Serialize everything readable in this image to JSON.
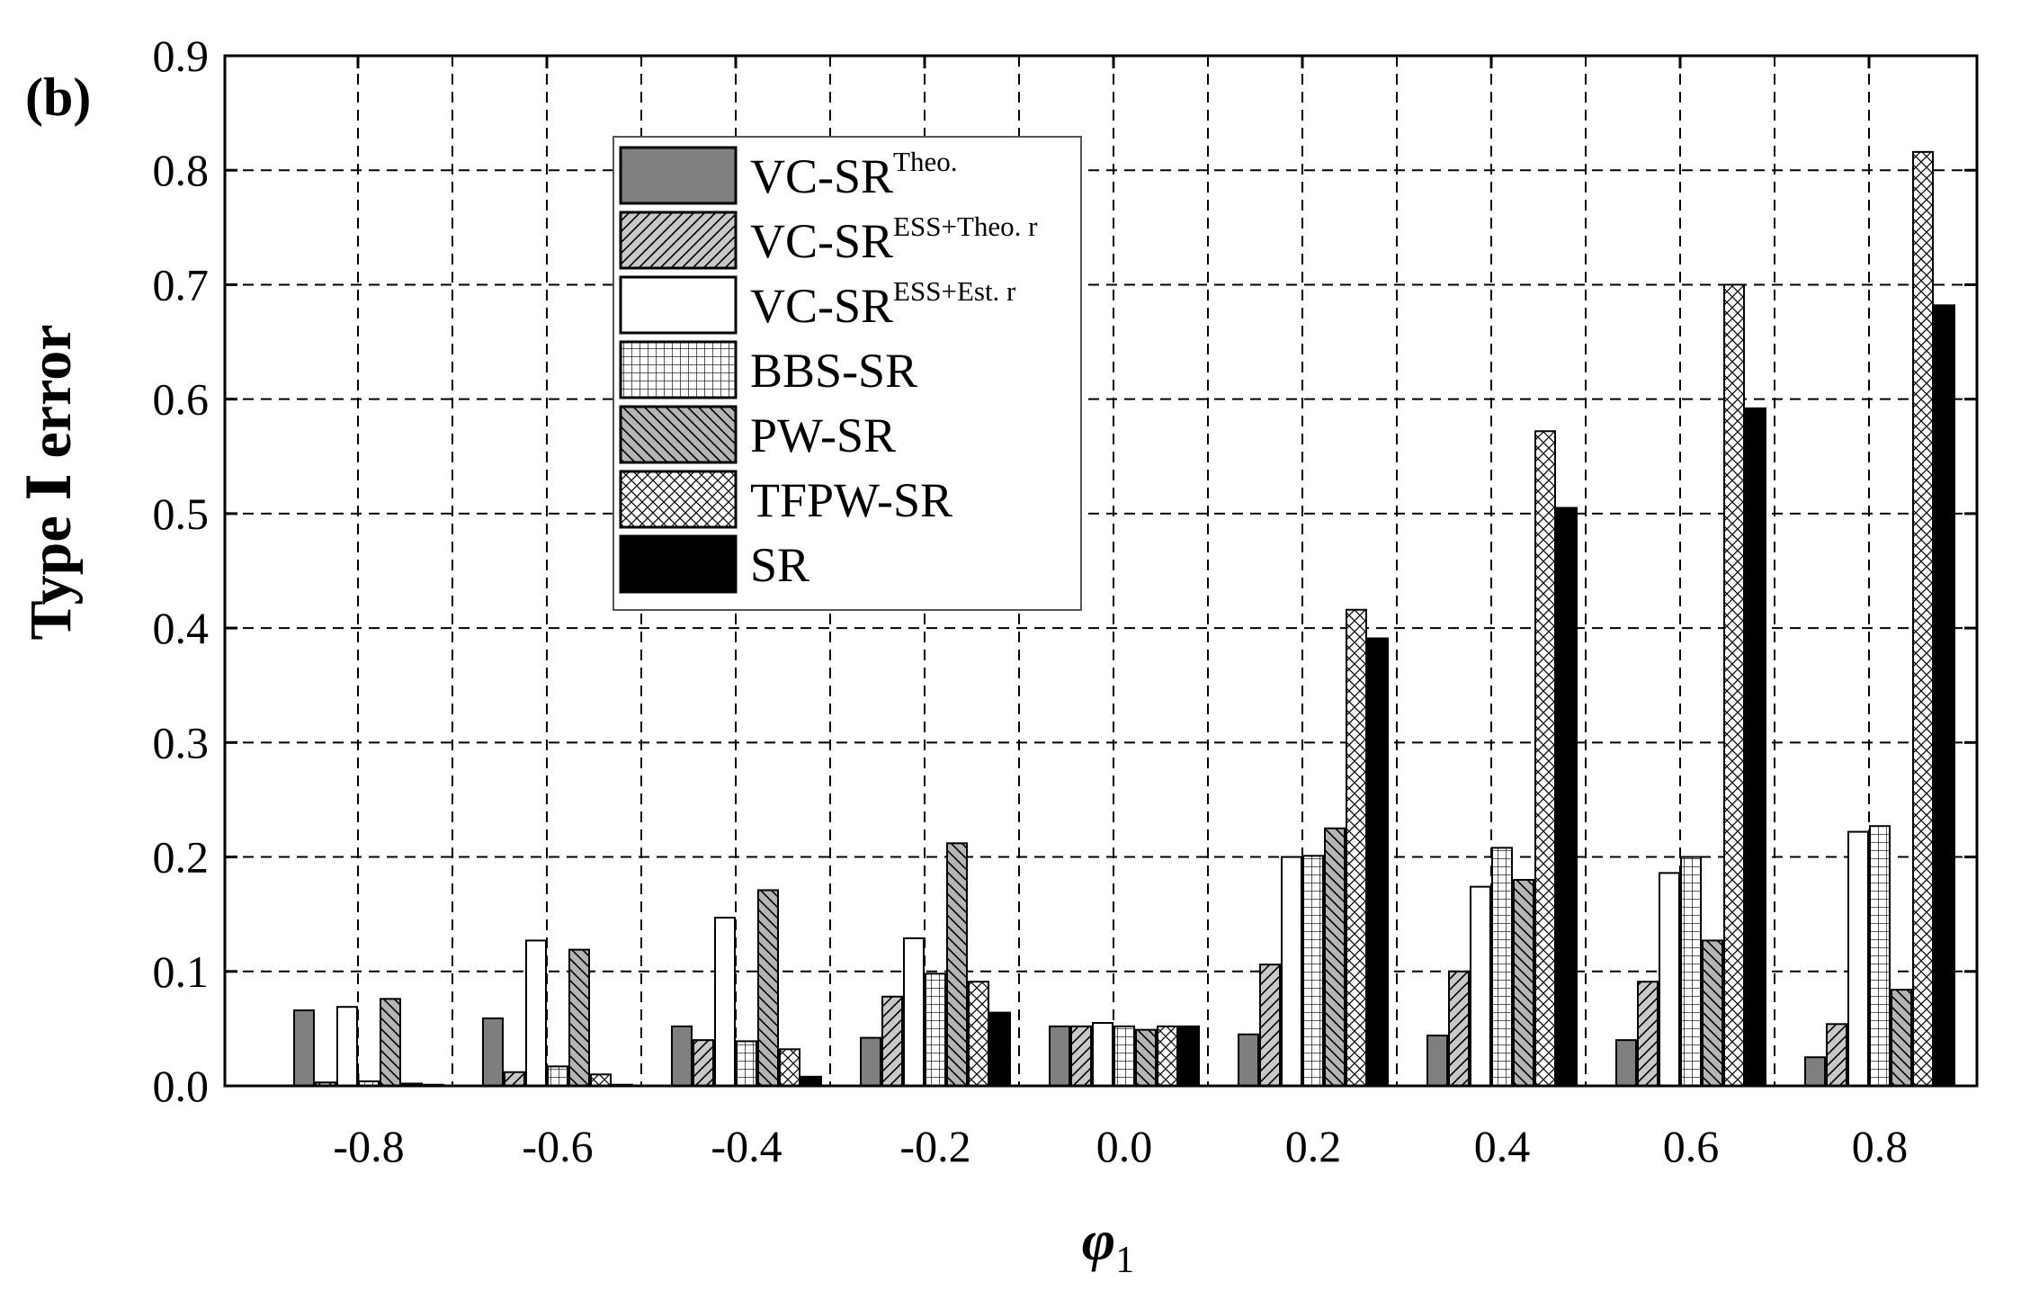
{
  "panel_label": "(b)",
  "chart_data": {
    "type": "bar",
    "title": "",
    "xlabel": "φ",
    "xlabel_sub": "1",
    "ylabel": "Type Ⅰ error",
    "ylim": [
      0,
      0.9
    ],
    "yticks": [
      "0.0",
      "0.1",
      "0.2",
      "0.3",
      "0.4",
      "0.5",
      "0.6",
      "0.7",
      "0.8",
      "0.9"
    ],
    "categories": [
      "-0.8",
      "-0.6",
      "-0.4",
      "-0.2",
      "0.0",
      "0.2",
      "0.4",
      "0.6",
      "0.8"
    ],
    "grid": true,
    "legend_position": "top-left",
    "series": [
      {
        "name": "VC-SR",
        "sup": "Theo.",
        "pattern": "solid-gray",
        "color": "#7f7f7f",
        "values": [
          0.066,
          0.059,
          0.052,
          0.042,
          0.052,
          0.045,
          0.044,
          0.04,
          0.025
        ]
      },
      {
        "name": "VC-SR",
        "sup": "ESS+Theo. r",
        "pattern": "diag-fwd",
        "color": "#c0c0c0",
        "values": [
          0.003,
          0.012,
          0.04,
          0.078,
          0.052,
          0.106,
          0.1,
          0.091,
          0.054
        ]
      },
      {
        "name": "VC-SR",
        "sup": "ESS+Est. r",
        "pattern": "white",
        "color": "#ffffff",
        "values": [
          0.069,
          0.127,
          0.147,
          0.129,
          0.055,
          0.2,
          0.174,
          0.186,
          0.222
        ]
      },
      {
        "name": "BBS-SR",
        "sup": "",
        "pattern": "grid",
        "color": "#ffffff",
        "values": [
          0.004,
          0.017,
          0.039,
          0.098,
          0.052,
          0.201,
          0.208,
          0.2,
          0.227
        ]
      },
      {
        "name": "PW-SR",
        "sup": "",
        "pattern": "diag-back",
        "color": "#b0b0b0",
        "values": [
          0.076,
          0.119,
          0.171,
          0.212,
          0.049,
          0.225,
          0.18,
          0.127,
          0.084
        ]
      },
      {
        "name": "TFPW-SR",
        "sup": "",
        "pattern": "cross",
        "color": "#ffffff",
        "values": [
          0.002,
          0.01,
          0.032,
          0.091,
          0.052,
          0.416,
          0.572,
          0.7,
          0.816
        ]
      },
      {
        "name": "SR",
        "sup": "",
        "pattern": "solid-black",
        "color": "#000000",
        "values": [
          0.001,
          0.001,
          0.008,
          0.064,
          0.052,
          0.391,
          0.505,
          0.592,
          0.682
        ]
      }
    ]
  }
}
